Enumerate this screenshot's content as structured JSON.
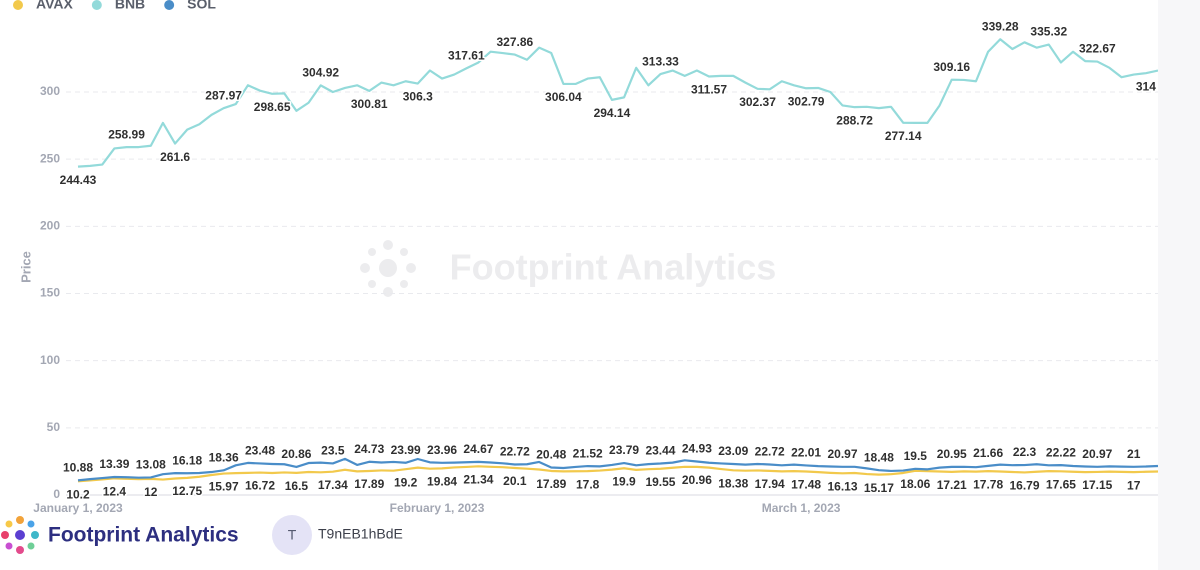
{
  "chart_data": {
    "type": "line",
    "y_label": "Price",
    "watermark": "Footprint Analytics",
    "categories": [
      "January 1, 2023",
      null,
      null,
      null,
      null,
      null,
      null,
      null,
      null,
      null,
      null,
      null,
      null,
      null,
      null,
      null,
      null,
      null,
      null,
      null,
      null,
      null,
      null,
      null,
      null,
      null,
      null,
      null,
      null,
      null,
      "February 1, 2023",
      null,
      null,
      null,
      null,
      null,
      null,
      null,
      null,
      null,
      null,
      null,
      null,
      null,
      null,
      null,
      null,
      null,
      null,
      null,
      null,
      null,
      null,
      null,
      null,
      null,
      null,
      null,
      null,
      null,
      "March 1, 2023",
      null,
      null,
      null,
      null,
      null,
      null,
      null,
      null,
      null,
      null,
      null,
      null,
      null,
      null,
      null,
      null,
      null,
      null,
      null,
      null,
      null,
      null,
      null,
      null,
      null,
      null,
      null,
      null,
      null
    ],
    "ylim": [
      0,
      350
    ],
    "yticks": [
      0,
      50,
      100,
      150,
      200,
      250,
      300
    ],
    "grid": true,
    "series": [
      {
        "name": "AVAX",
        "color": "#f2c94c",
        "values": [
          10.2,
          10.9,
          11.6,
          12.4,
          12.1,
          11.8,
          12.0,
          11.5,
          12.3,
          12.75,
          13.6,
          14.9,
          15.97,
          16.3,
          16.5,
          16.72,
          16.4,
          16.8,
          16.5,
          17.1,
          16.9,
          17.34,
          18.8,
          17.6,
          17.89,
          18.3,
          18.1,
          19.2,
          20.4,
          19.6,
          19.84,
          20.5,
          20.9,
          21.34,
          21.0,
          20.7,
          20.1,
          19.6,
          19.0,
          17.89,
          17.6,
          17.7,
          17.8,
          18.2,
          18.9,
          19.9,
          18.7,
          19.2,
          19.55,
          20.3,
          21.0,
          20.96,
          20.4,
          19.3,
          18.38,
          18.1,
          18.3,
          17.94,
          17.6,
          17.8,
          17.48,
          17.0,
          16.5,
          16.13,
          16.4,
          15.6,
          15.17,
          15.5,
          16.4,
          18.06,
          17.8,
          17.5,
          17.21,
          17.6,
          17.4,
          17.78,
          17.5,
          17.1,
          16.79,
          17.3,
          17.8,
          17.65,
          17.3,
          17.0,
          17.15,
          17.4,
          17.2,
          17,
          17.3,
          17.5
        ]
      },
      {
        "name": "BNB",
        "color": "#93dada",
        "values": [
          244.43,
          245,
          246,
          258,
          258.99,
          259,
          260,
          277,
          261.6,
          272,
          276,
          283,
          287.97,
          291,
          305,
          301,
          298.65,
          299,
          286,
          292,
          304.92,
          300,
          303,
          305,
          300.81,
          307,
          305,
          308,
          306.3,
          316,
          310,
          313,
          317.61,
          322,
          330,
          329,
          327.86,
          324,
          333,
          329,
          306.04,
          306,
          310,
          311,
          294.14,
          296,
          318,
          305,
          313.33,
          316,
          312,
          316,
          311.57,
          312,
          312,
          307,
          302.37,
          302,
          308,
          305,
          302.79,
          303,
          300,
          290,
          288.72,
          289,
          288,
          289,
          277.14,
          277,
          277,
          290,
          309.16,
          309,
          308,
          330,
          339.28,
          332,
          337,
          333,
          335.32,
          322,
          330,
          323,
          322.67,
          318,
          311,
          313,
          314,
          316
        ]
      },
      {
        "name": "SOL",
        "color": "#4a8dc8",
        "values": [
          10.88,
          11.8,
          12.6,
          13.39,
          13.2,
          12.9,
          13.08,
          15.5,
          16.3,
          16.18,
          16.4,
          17.1,
          18.36,
          22.1,
          23.9,
          23.48,
          23.1,
          22.9,
          20.86,
          23.8,
          24.1,
          23.5,
          26.9,
          22.4,
          24.73,
          24.2,
          24.6,
          23.99,
          26.8,
          24.3,
          23.96,
          24.1,
          24.4,
          24.67,
          24.2,
          23.6,
          22.72,
          22.9,
          24.6,
          20.48,
          20.1,
          20.9,
          21.52,
          21.3,
          22.4,
          23.79,
          22.1,
          23.0,
          23.44,
          24.1,
          25.8,
          24.93,
          24.0,
          23.5,
          23.09,
          22.6,
          23.1,
          22.72,
          22.1,
          22.6,
          22.01,
          21.5,
          21.2,
          20.97,
          21.0,
          19.8,
          18.48,
          17.9,
          18.2,
          19.5,
          19.1,
          20.4,
          20.95,
          21.0,
          20.7,
          21.66,
          22.6,
          22.2,
          22.3,
          22.9,
          22.1,
          22.22,
          21.6,
          21.2,
          20.97,
          21.3,
          21.1,
          21,
          21.2,
          21.6
        ]
      }
    ]
  },
  "footer": {
    "brand": "Footprint Analytics",
    "avatar": "T",
    "user": "T9nEB1hBdE"
  }
}
